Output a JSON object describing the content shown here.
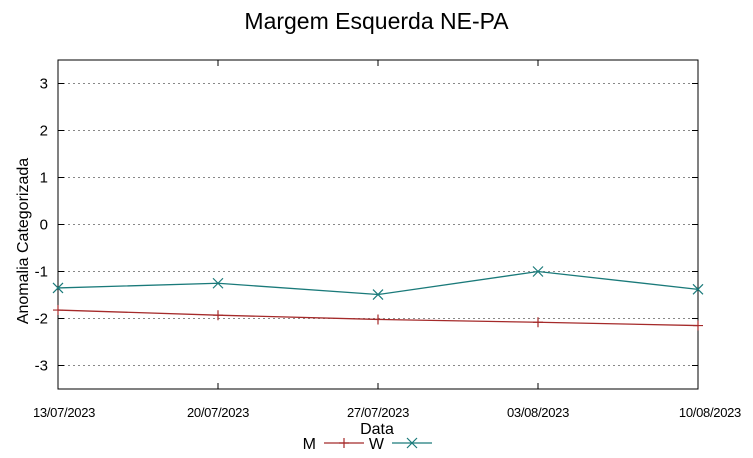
{
  "chart_data": {
    "type": "line",
    "title": "Margem Esquerda NE-PA",
    "xlabel": "Data",
    "ylabel": "Anomalia Categorizada",
    "categories": [
      "13/07/2023",
      "20/07/2023",
      "27/07/2023",
      "03/08/2023",
      "10/08/2023"
    ],
    "yticks": [
      "3",
      "2",
      "1",
      "0",
      "-1",
      "-2",
      "-3"
    ],
    "ylim": [
      -3.5,
      3.5
    ],
    "grid": true,
    "legend_position": "bottom-center",
    "series": [
      {
        "name": "M",
        "marker": "plus",
        "color": "#a52a2a",
        "values": [
          -1.82,
          -1.93,
          -2.02,
          -2.08,
          -2.15
        ]
      },
      {
        "name": "W",
        "marker": "cross",
        "color": "#1a7a7a",
        "values": [
          -1.35,
          -1.25,
          -1.49,
          -1.0,
          -1.38
        ]
      }
    ]
  }
}
